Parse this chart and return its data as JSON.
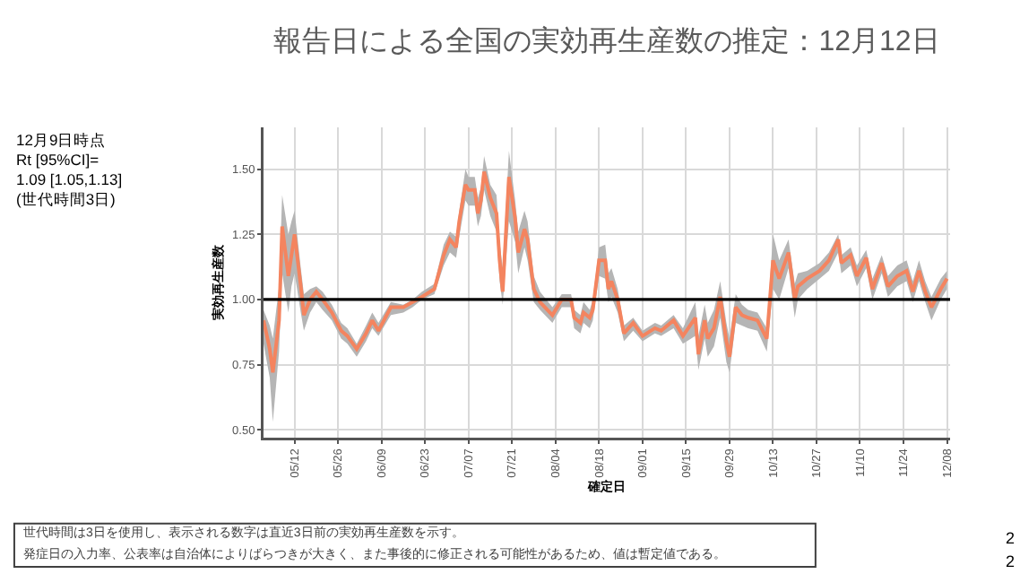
{
  "chart_data": {
    "type": "line",
    "title": "報告日による全国の実効再生産数の推定：12月12日",
    "xlabel": "確定日",
    "ylabel": "実効再生産数",
    "x": [
      "--05-02",
      "--05-04",
      "--05-05",
      "--05-07",
      "--05-08",
      "--05-10",
      "--05-11",
      "--05-12",
      "--05-14",
      "--05-15",
      "--05-17",
      "--05-19",
      "--05-21",
      "--05-24",
      "--05-27",
      "--05-29",
      "--06-01",
      "--06-04",
      "--06-06",
      "--06-08",
      "--06-12",
      "--06-16",
      "--06-19",
      "--06-22",
      "--06-26",
      "--06-29",
      "--07-01",
      "--07-03",
      "--07-04",
      "--07-06",
      "--07-07",
      "--07-09",
      "--07-10",
      "--07-11",
      "--07-12",
      "--07-14",
      "--07-16",
      "--07-17",
      "--07-18",
      "--07-20",
      "--07-22",
      "--07-23",
      "--07-25",
      "--07-26",
      "--07-28",
      "--07-30",
      "--08-03",
      "--08-06",
      "--08-09",
      "--08-10",
      "--08-12",
      "--08-13",
      "--08-15",
      "--08-16",
      "--08-18",
      "--08-20",
      "--08-21",
      "--08-22",
      "--08-24",
      "--08-26",
      "--08-29",
      "--09-01",
      "--09-05",
      "--09-07",
      "--09-11",
      "--09-14",
      "--09-18",
      "--09-19",
      "--09-21",
      "--09-22",
      "--09-24",
      "--09-26",
      "--09-28",
      "--09-29",
      "--10-01",
      "--10-03",
      "--10-05",
      "--10-08",
      "--10-11",
      "--10-13",
      "--10-15",
      "--10-18",
      "--10-20",
      "--10-21",
      "--10-24",
      "--10-28",
      "--10-31",
      "--11-03",
      "--11-04",
      "--11-07",
      "--11-09",
      "--11-12",
      "--11-14",
      "--11-17",
      "--11-19",
      "--11-22",
      "--11-25",
      "--11-27",
      "--11-29",
      "--12-01",
      "--12-03",
      "--12-06",
      "--12-08"
    ],
    "series": [
      {
        "color": "#f4845f",
        "values": [
          0.92,
          0.81,
          0.72,
          0.92,
          1.28,
          1.09,
          1.17,
          1.25,
          1.05,
          0.94,
          1.0,
          1.03,
          1.0,
          0.95,
          0.88,
          0.86,
          0.81,
          0.87,
          0.92,
          0.88,
          0.97,
          0.97,
          0.99,
          1.01,
          1.04,
          1.17,
          1.23,
          1.2,
          1.3,
          1.44,
          1.42,
          1.42,
          1.33,
          1.38,
          1.49,
          1.39,
          1.33,
          1.15,
          1.03,
          1.47,
          1.31,
          1.18,
          1.27,
          1.23,
          1.04,
          0.99,
          0.94,
          1.0,
          1.0,
          0.93,
          0.91,
          0.95,
          0.93,
          0.96,
          1.15,
          1.15,
          1.04,
          1.07,
          1.0,
          0.87,
          0.91,
          0.86,
          0.89,
          0.88,
          0.92,
          0.86,
          0.93,
          0.79,
          0.92,
          0.85,
          0.89,
          1.01,
          0.84,
          0.78,
          0.97,
          0.94,
          0.93,
          0.92,
          0.85,
          1.15,
          1.08,
          1.18,
          1.0,
          1.05,
          1.08,
          1.11,
          1.15,
          1.23,
          1.14,
          1.17,
          1.09,
          1.16,
          1.04,
          1.14,
          1.05,
          1.09,
          1.11,
          1.03,
          1.11,
          1.03,
          0.97,
          1.04,
          1.08
        ],
        "lower": [
          0.83,
          0.7,
          0.53,
          0.8,
          1.1,
          0.95,
          1.05,
          1.1,
          0.95,
          0.88,
          0.95,
          0.99,
          0.96,
          0.92,
          0.85,
          0.83,
          0.78,
          0.84,
          0.89,
          0.86,
          0.94,
          0.95,
          0.97,
          1.0,
          1.02,
          1.13,
          1.18,
          1.16,
          1.24,
          1.38,
          1.36,
          1.36,
          1.28,
          1.32,
          1.42,
          1.32,
          1.26,
          1.07,
          0.98,
          1.3,
          1.22,
          1.1,
          1.2,
          1.15,
          0.99,
          0.96,
          0.91,
          0.97,
          0.97,
          0.89,
          0.87,
          0.91,
          0.89,
          0.92,
          1.09,
          1.08,
          0.99,
          1.01,
          0.95,
          0.84,
          0.88,
          0.84,
          0.87,
          0.86,
          0.89,
          0.83,
          0.86,
          0.73,
          0.85,
          0.78,
          0.82,
          0.93,
          0.76,
          0.72,
          0.91,
          0.9,
          0.89,
          0.88,
          0.8,
          1.04,
          1.0,
          1.12,
          0.93,
          1.0,
          1.04,
          1.08,
          1.11,
          1.18,
          1.1,
          1.13,
          1.05,
          1.12,
          1.0,
          1.1,
          1.01,
          1.05,
          1.07,
          0.99,
          1.07,
          0.99,
          0.92,
          1.0,
          1.04
        ],
        "upper": [
          0.96,
          0.9,
          0.85,
          1.05,
          1.4,
          1.25,
          1.3,
          1.34,
          1.12,
          1.02,
          1.04,
          1.05,
          1.03,
          0.98,
          0.91,
          0.89,
          0.83,
          0.9,
          0.95,
          0.91,
          0.99,
          0.98,
          1.0,
          1.03,
          1.06,
          1.21,
          1.26,
          1.24,
          1.34,
          1.5,
          1.47,
          1.47,
          1.39,
          1.43,
          1.55,
          1.44,
          1.4,
          1.22,
          1.12,
          1.57,
          1.38,
          1.26,
          1.34,
          1.3,
          1.09,
          1.03,
          0.97,
          1.02,
          1.02,
          0.96,
          0.94,
          0.99,
          0.96,
          1.0,
          1.2,
          1.21,
          1.1,
          1.12,
          1.04,
          0.9,
          0.93,
          0.88,
          0.91,
          0.9,
          0.94,
          0.89,
          0.99,
          0.86,
          0.98,
          0.91,
          0.96,
          1.07,
          0.91,
          0.85,
          1.02,
          0.98,
          0.96,
          0.95,
          0.89,
          1.25,
          1.15,
          1.23,
          1.06,
          1.1,
          1.11,
          1.14,
          1.18,
          1.25,
          1.17,
          1.2,
          1.13,
          1.19,
          1.08,
          1.17,
          1.09,
          1.13,
          1.15,
          1.07,
          1.15,
          1.07,
          1.01,
          1.08,
          1.11
        ]
      }
    ],
    "xlim": [
      "--05-02",
      "--12-09"
    ],
    "xticks": [
      {
        "value": "--05-12",
        "label": "05/12"
      },
      {
        "value": "--05-26",
        "label": "05/26"
      },
      {
        "value": "--06-09",
        "label": "06/09"
      },
      {
        "value": "--06-23",
        "label": "06/23"
      },
      {
        "value": "--07-07",
        "label": "07/07"
      },
      {
        "value": "--07-21",
        "label": "07/21"
      },
      {
        "value": "--08-04",
        "label": "08/04"
      },
      {
        "value": "--08-18",
        "label": "08/18"
      },
      {
        "value": "--09-01",
        "label": "09/01"
      },
      {
        "value": "--09-15",
        "label": "09/15"
      },
      {
        "value": "--09-29",
        "label": "09/29"
      },
      {
        "value": "--10-13",
        "label": "10/13"
      },
      {
        "value": "--10-27",
        "label": "10/27"
      },
      {
        "value": "--11-10",
        "label": "11/10"
      },
      {
        "value": "--11-24",
        "label": "11/24"
      },
      {
        "value": "--12-08",
        "label": "12/08"
      }
    ],
    "ylim": [
      0.47,
      1.66
    ],
    "yticks": [
      {
        "value": 0.5,
        "label": "0.50"
      },
      {
        "value": 0.75,
        "label": "0.75"
      },
      {
        "value": 1,
        "label": "1.00"
      },
      {
        "value": 1.25,
        "label": "1.25"
      },
      {
        "value": 1.5,
        "label": "1.50"
      }
    ],
    "grid": true,
    "ref_lines": [
      {
        "axis": "y",
        "value": 1,
        "color": "#000000"
      }
    ],
    "annotations": [
      "12月9日時点\nRt [95%CI]=\n1.09 [1.05,1.13]\n(世代時間3日)",
      "世代時間は3日を使用し、表示される数字は直近3日前の実効再生産数を示す。",
      "発症日の入力率、公表率は自治体によりばらつきが大きく、また事後的に修正される可能性があるため、値は暫定値である。",
      "2",
      "2"
    ]
  }
}
